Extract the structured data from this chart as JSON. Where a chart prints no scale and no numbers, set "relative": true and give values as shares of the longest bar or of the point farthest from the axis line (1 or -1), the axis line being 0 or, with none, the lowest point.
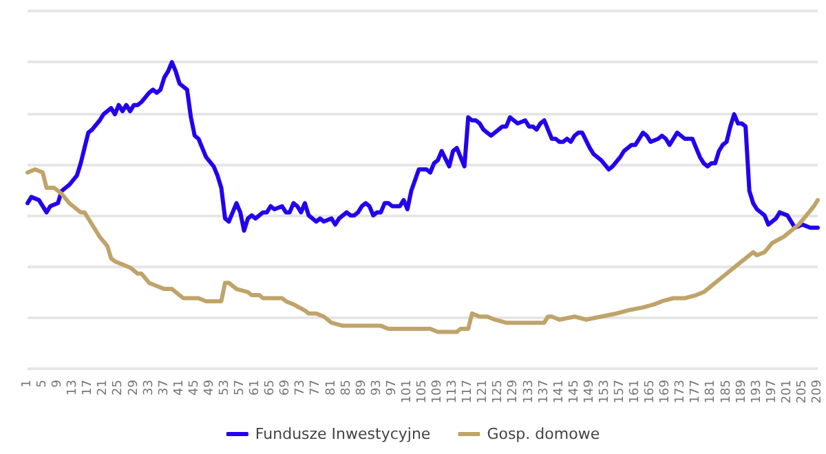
{
  "chart_data": {
    "type": "line",
    "relative": true,
    "grid": "y",
    "legend": "bottom",
    "marker": "none",
    "line_style": "solid",
    "xlim": [
      1,
      209
    ],
    "xticks": [
      1,
      5,
      9,
      13,
      17,
      21,
      25,
      29,
      33,
      37,
      41,
      45,
      49,
      53,
      57,
      61,
      65,
      69,
      73,
      77,
      81,
      85,
      89,
      93,
      97,
      101,
      105,
      109,
      113,
      117,
      121,
      125,
      129,
      133,
      137,
      141,
      145,
      149,
      153,
      157,
      161,
      165,
      169,
      173,
      177,
      181,
      185,
      189,
      193,
      197,
      201,
      205,
      209
    ],
    "series": [
      {
        "name": "Fundusze Inwestycyjne",
        "color": "#2200ee",
        "x": [
          1,
          2,
          4,
          6,
          7,
          9,
          10,
          12,
          14,
          15,
          16,
          17,
          18,
          20,
          21,
          23,
          24,
          25,
          26,
          27,
          28,
          29,
          30,
          31,
          33,
          34,
          35,
          36,
          37,
          38,
          39,
          40,
          41,
          43,
          44,
          45,
          46,
          47,
          48,
          50,
          51,
          52,
          53,
          54,
          55,
          56,
          57,
          58,
          59,
          60,
          61,
          62,
          63,
          64,
          65,
          66,
          68,
          69,
          70,
          71,
          72,
          73,
          74,
          75,
          77,
          78,
          79,
          81,
          82,
          83,
          85,
          86,
          87,
          88,
          89,
          90,
          91,
          92,
          93,
          94,
          95,
          96,
          97,
          99,
          100,
          101,
          102,
          104,
          106,
          107,
          108,
          109,
          110,
          112,
          113,
          114,
          116,
          117,
          118,
          119,
          120,
          121,
          122,
          123,
          125,
          126,
          127,
          128,
          129,
          130,
          132,
          133,
          134,
          135,
          136,
          137,
          138,
          139,
          140,
          141,
          142,
          143,
          144,
          145,
          146,
          147,
          149,
          150,
          152,
          154,
          155,
          157,
          158,
          160,
          161,
          162,
          163,
          164,
          165,
          167,
          168,
          169,
          170,
          171,
          172,
          173,
          174,
          176,
          177,
          178,
          179,
          180,
          181,
          182,
          183,
          184,
          185,
          186,
          187,
          188,
          189,
          190,
          191,
          192,
          193,
          195,
          196,
          198,
          199,
          201,
          203,
          205,
          207,
          209
        ],
        "values": [
          0.54,
          0.56,
          0.55,
          0.51,
          0.53,
          0.54,
          0.58,
          0.6,
          0.63,
          0.67,
          0.72,
          0.77,
          0.78,
          0.81,
          0.83,
          0.85,
          0.83,
          0.86,
          0.84,
          0.86,
          0.84,
          0.86,
          0.86,
          0.87,
          0.9,
          0.91,
          0.9,
          0.91,
          0.95,
          0.97,
          1,
          0.97,
          0.93,
          0.91,
          0.82,
          0.76,
          0.75,
          0.72,
          0.69,
          0.66,
          0.63,
          0.59,
          0.49,
          0.48,
          0.51,
          0.54,
          0.51,
          0.45,
          0.49,
          0.5,
          0.49,
          0.5,
          0.51,
          0.51,
          0.53,
          0.52,
          0.53,
          0.51,
          0.51,
          0.54,
          0.53,
          0.51,
          0.54,
          0.5,
          0.48,
          0.49,
          0.48,
          0.49,
          0.47,
          0.49,
          0.51,
          0.5,
          0.5,
          0.51,
          0.53,
          0.54,
          0.53,
          0.5,
          0.51,
          0.51,
          0.54,
          0.54,
          0.53,
          0.53,
          0.55,
          0.52,
          0.58,
          0.65,
          0.65,
          0.64,
          0.67,
          0.68,
          0.71,
          0.66,
          0.71,
          0.72,
          0.66,
          0.82,
          0.81,
          0.81,
          0.8,
          0.78,
          0.77,
          0.76,
          0.78,
          0.79,
          0.79,
          0.82,
          0.81,
          0.8,
          0.81,
          0.79,
          0.79,
          0.78,
          0.8,
          0.81,
          0.78,
          0.75,
          0.75,
          0.74,
          0.74,
          0.75,
          0.74,
          0.76,
          0.77,
          0.77,
          0.72,
          0.7,
          0.68,
          0.65,
          0.66,
          0.69,
          0.71,
          0.73,
          0.73,
          0.75,
          0.77,
          0.76,
          0.74,
          0.75,
          0.76,
          0.75,
          0.73,
          0.75,
          0.77,
          0.76,
          0.75,
          0.75,
          0.72,
          0.69,
          0.67,
          0.66,
          0.67,
          0.67,
          0.71,
          0.73,
          0.74,
          0.79,
          0.83,
          0.8,
          0.8,
          0.79,
          0.58,
          0.54,
          0.52,
          0.5,
          0.47,
          0.49,
          0.51,
          0.5,
          0.46,
          0.47,
          0.46,
          0.46
        ]
      },
      {
        "name": "Gosp. domowe",
        "color": "#bfa46a",
        "x": [
          1,
          3,
          5,
          6,
          8,
          9,
          10,
          12,
          14,
          15,
          16,
          18,
          20,
          22,
          23,
          24,
          26,
          28,
          30,
          31,
          33,
          35,
          37,
          39,
          41,
          42,
          43,
          46,
          48,
          50,
          52,
          53,
          54,
          56,
          59,
          60,
          62,
          63,
          66,
          68,
          69,
          71,
          74,
          75,
          77,
          79,
          81,
          84,
          86,
          88,
          91,
          94,
          96,
          99,
          102,
          105,
          107,
          109,
          112,
          114,
          115,
          116,
          117,
          118,
          120,
          122,
          124,
          127,
          129,
          131,
          135,
          137,
          138,
          139,
          141,
          145,
          148,
          152,
          156,
          159,
          163,
          166,
          168,
          171,
          174,
          177,
          179,
          181,
          184,
          188,
          190,
          192,
          193,
          195,
          197,
          200,
          202,
          204,
          206,
          208,
          209
        ],
        "values": [
          0.64,
          0.65,
          0.64,
          0.59,
          0.59,
          0.58,
          0.57,
          0.54,
          0.52,
          0.51,
          0.51,
          0.47,
          0.43,
          0.4,
          0.36,
          0.35,
          0.34,
          0.33,
          0.31,
          0.31,
          0.28,
          0.27,
          0.26,
          0.26,
          0.24,
          0.23,
          0.23,
          0.23,
          0.22,
          0.22,
          0.22,
          0.28,
          0.28,
          0.26,
          0.25,
          0.24,
          0.24,
          0.23,
          0.23,
          0.23,
          0.22,
          0.21,
          0.19,
          0.18,
          0.18,
          0.17,
          0.15,
          0.14,
          0.14,
          0.14,
          0.14,
          0.14,
          0.13,
          0.13,
          0.13,
          0.13,
          0.13,
          0.12,
          0.12,
          0.12,
          0.13,
          0.13,
          0.13,
          0.18,
          0.17,
          0.17,
          0.16,
          0.15,
          0.15,
          0.15,
          0.15,
          0.15,
          0.17,
          0.17,
          0.16,
          0.17,
          0.16,
          0.17,
          0.18,
          0.19,
          0.2,
          0.21,
          0.22,
          0.23,
          0.23,
          0.24,
          0.25,
          0.27,
          0.3,
          0.34,
          0.36,
          0.38,
          0.37,
          0.38,
          0.41,
          0.43,
          0.45,
          0.47,
          0.5,
          0.53,
          0.55
        ]
      }
    ]
  }
}
